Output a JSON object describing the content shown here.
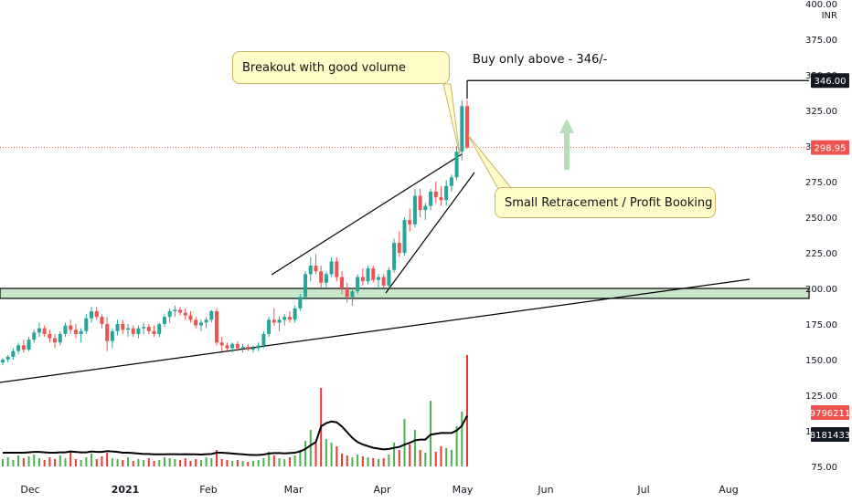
{
  "chart_data": {
    "type": "candlestick",
    "currency_label": "INR",
    "y_ticks": [
      "400.00",
      "375.00",
      "350.00",
      "325.00",
      "300.00",
      "275.00",
      "250.00",
      "225.00",
      "200.00",
      "175.00",
      "150.00",
      "125.00",
      "100.00",
      "75.00"
    ],
    "x_ticks": [
      "Dec",
      "2021",
      "Feb",
      "Mar",
      "Apr",
      "May",
      "Jun",
      "Jul",
      "Aug"
    ],
    "price_badges": [
      {
        "label": "346.00",
        "value": 346,
        "style": "dark"
      },
      {
        "label": "298.95",
        "value": 298.95,
        "style": "red"
      },
      {
        "label": "9796211",
        "value": 9796211,
        "style": "red"
      },
      {
        "label": "8181433",
        "value": 8181433,
        "style": "dark"
      }
    ],
    "annotations": {
      "breakout": "Breakout with good volume",
      "buy": "Buy only above - 346/-",
      "retracement": "Small Retracement / Profit Booking"
    },
    "resistance_zone": [
      193,
      200
    ],
    "buy_level": 346,
    "last_price": 298.95,
    "colors": {
      "up": "#26a69a",
      "down": "#ef5350",
      "zone": "#c8e6c9",
      "callout": "#fffcc8",
      "arrow": "#a5d6a7"
    },
    "candles": [
      [
        148,
        151,
        146,
        150
      ],
      [
        150,
        153,
        148,
        152
      ],
      [
        152,
        158,
        150,
        156
      ],
      [
        156,
        162,
        154,
        160
      ],
      [
        160,
        164,
        155,
        157
      ],
      [
        157,
        166,
        156,
        164
      ],
      [
        164,
        171,
        162,
        169
      ],
      [
        169,
        176,
        166,
        172
      ],
      [
        172,
        174,
        166,
        168
      ],
      [
        168,
        171,
        162,
        165
      ],
      [
        165,
        168,
        158,
        162
      ],
      [
        162,
        170,
        160,
        168
      ],
      [
        168,
        176,
        166,
        174
      ],
      [
        174,
        178,
        168,
        171
      ],
      [
        171,
        175,
        165,
        168
      ],
      [
        168,
        172,
        162,
        170
      ],
      [
        170,
        182,
        168,
        179
      ],
      [
        179,
        187,
        176,
        184
      ],
      [
        184,
        187,
        178,
        180
      ],
      [
        180,
        182,
        172,
        175
      ],
      [
        175,
        180,
        156,
        163
      ],
      [
        163,
        172,
        158,
        170
      ],
      [
        170,
        178,
        167,
        175
      ],
      [
        175,
        178,
        168,
        171
      ],
      [
        171,
        175,
        166,
        172
      ],
      [
        172,
        174,
        166,
        168
      ],
      [
        168,
        174,
        165,
        172
      ],
      [
        172,
        176,
        168,
        173
      ],
      [
        173,
        175,
        168,
        170
      ],
      [
        170,
        174,
        166,
        168
      ],
      [
        168,
        176,
        166,
        175
      ],
      [
        175,
        182,
        173,
        180
      ],
      [
        180,
        186,
        176,
        184
      ],
      [
        184,
        188,
        180,
        185
      ],
      [
        185,
        187,
        181,
        183
      ],
      [
        183,
        186,
        178,
        181
      ],
      [
        181,
        184,
        176,
        178
      ],
      [
        178,
        180,
        172,
        174
      ],
      [
        174,
        178,
        170,
        176
      ],
      [
        176,
        180,
        172,
        178
      ],
      [
        178,
        185,
        176,
        184
      ],
      [
        184,
        186,
        160,
        162
      ],
      [
        162,
        166,
        156,
        160
      ],
      [
        160,
        162,
        156,
        158
      ],
      [
        158,
        162,
        155,
        161
      ],
      [
        161,
        163,
        156,
        158
      ],
      [
        158,
        161,
        155,
        159
      ],
      [
        159,
        161,
        156,
        157
      ],
      [
        157,
        160,
        155,
        158
      ],
      [
        158,
        162,
        156,
        160
      ],
      [
        160,
        170,
        158,
        168
      ],
      [
        168,
        180,
        166,
        178
      ],
      [
        178,
        186,
        174,
        176
      ],
      [
        176,
        180,
        170,
        178
      ],
      [
        178,
        182,
        174,
        180
      ],
      [
        180,
        184,
        176,
        178
      ],
      [
        178,
        188,
        176,
        186
      ],
      [
        186,
        196,
        184,
        194
      ],
      [
        194,
        212,
        192,
        210
      ],
      [
        210,
        222,
        205,
        216
      ],
      [
        216,
        224,
        210,
        212
      ],
      [
        212,
        216,
        200,
        204
      ],
      [
        204,
        212,
        200,
        210
      ],
      [
        210,
        222,
        208,
        219
      ],
      [
        219,
        222,
        205,
        208
      ],
      [
        208,
        212,
        196,
        200
      ],
      [
        200,
        204,
        190,
        194
      ],
      [
        194,
        200,
        188,
        198
      ],
      [
        198,
        210,
        196,
        208
      ],
      [
        208,
        214,
        202,
        205
      ],
      [
        205,
        216,
        203,
        214
      ],
      [
        214,
        216,
        204,
        206
      ],
      [
        206,
        210,
        200,
        208
      ],
      [
        208,
        210,
        200,
        202
      ],
      [
        202,
        215,
        200,
        213
      ],
      [
        213,
        235,
        211,
        232
      ],
      [
        232,
        240,
        222,
        225
      ],
      [
        225,
        250,
        223,
        248
      ],
      [
        248,
        256,
        240,
        245
      ],
      [
        245,
        270,
        243,
        265
      ],
      [
        265,
        270,
        250,
        255
      ],
      [
        255,
        260,
        248,
        258
      ],
      [
        258,
        270,
        255,
        268
      ],
      [
        268,
        275,
        260,
        264
      ],
      [
        264,
        272,
        258,
        262
      ],
      [
        262,
        276,
        258,
        272
      ],
      [
        272,
        280,
        268,
        278
      ],
      [
        278,
        300,
        276,
        296
      ],
      [
        296,
        332,
        290,
        328
      ],
      [
        328,
        332,
        298,
        299
      ]
    ],
    "volumes": [
      0.8,
      1.0,
      0.7,
      1.2,
      0.9,
      1.1,
      1.3,
      0.9,
      0.7,
      1.0,
      0.8,
      1.2,
      0.9,
      1.6,
      0.8,
      0.7,
      1.0,
      1.4,
      0.8,
      1.1,
      1.5,
      0.9,
      0.8,
      0.7,
      1.0,
      0.6,
      0.8,
      0.7,
      0.9,
      0.6,
      0.7,
      1.0,
      0.9,
      0.8,
      0.7,
      0.9,
      0.6,
      0.8,
      0.7,
      1.0,
      0.9,
      1.8,
      0.8,
      0.7,
      0.6,
      0.7,
      0.6,
      0.5,
      0.6,
      0.7,
      0.9,
      1.6,
      1.2,
      0.9,
      0.8,
      1.0,
      1.2,
      1.8,
      2.8,
      4.0,
      2.6,
      8.6,
      3.0,
      2.6,
      2.2,
      1.4,
      1.2,
      1.0,
      1.3,
      1.1,
      1.0,
      0.9,
      0.8,
      0.9,
      1.3,
      2.6,
      1.8,
      5.2,
      2.4,
      4.0,
      1.8,
      1.5,
      7.2,
      1.6,
      2.2,
      2.0,
      1.8,
      4.4,
      6.0,
      12.2
    ],
    "volume_ma": [
      1.0,
      1.0,
      1.0,
      1.0,
      1.0,
      1.05,
      1.1,
      1.1,
      1.05,
      1.0,
      1.0,
      1.05,
      1.05,
      1.15,
      1.1,
      1.05,
      1.05,
      1.15,
      1.1,
      1.1,
      1.2,
      1.15,
      1.1,
      1.0,
      1.0,
      0.95,
      0.9,
      0.85,
      0.85,
      0.8,
      0.8,
      0.8,
      0.82,
      0.82,
      0.8,
      0.82,
      0.8,
      0.8,
      0.78,
      0.82,
      0.85,
      1.0,
      1.0,
      0.95,
      0.9,
      0.85,
      0.8,
      0.75,
      0.72,
      0.72,
      0.78,
      0.9,
      0.95,
      0.95,
      0.92,
      0.95,
      1.0,
      1.15,
      1.45,
      1.9,
      2.3,
      4.2,
      4.6,
      4.8,
      4.7,
      4.2,
      3.5,
      2.8,
      2.3,
      2.0,
      1.8,
      1.6,
      1.5,
      1.4,
      1.45,
      1.6,
      1.7,
      2.0,
      2.2,
      2.5,
      2.6,
      2.6,
      3.2,
      3.3,
      3.4,
      3.4,
      3.4,
      3.7,
      4.3,
      5.5
    ],
    "ylim": [
      75,
      400
    ]
  }
}
